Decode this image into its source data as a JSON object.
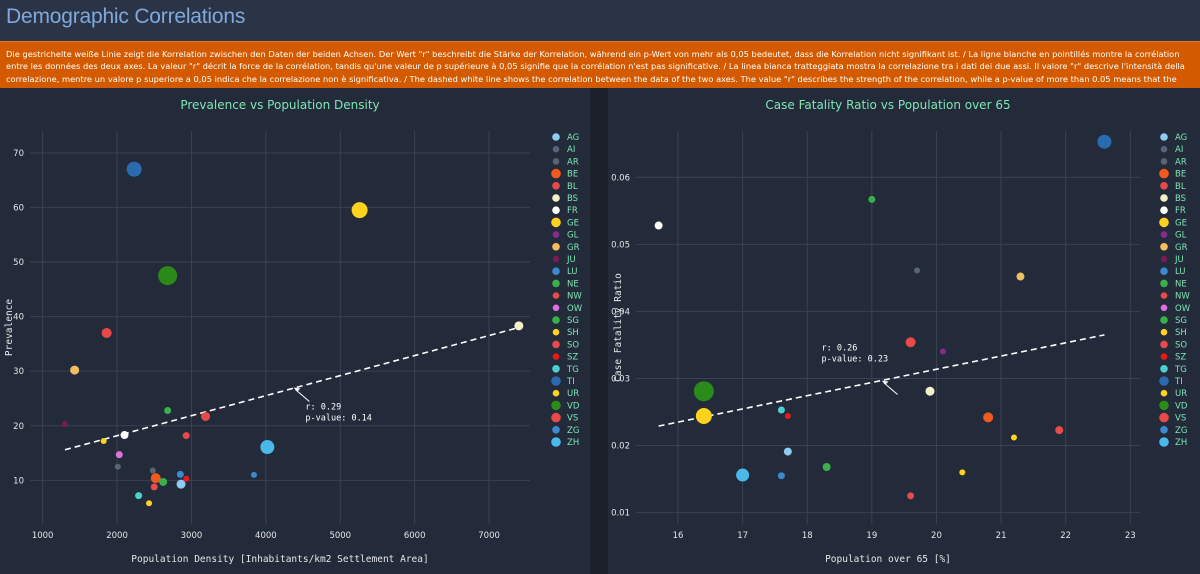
{
  "page": {
    "title": "Demographic Correlations",
    "banner": "Die gestrichelte weiße Linie zeigt die Korrelation zwischen den Daten der beiden Achsen. Der Wert \"r\" beschreibt die Stärke der Korrelation, während ein p-Wert von mehr als 0,05 bedeutet, dass die Korrelation nicht signifikant ist. / La ligne blanche en pointillés montre la corrélation entre les données des deux axes. La valeur \"r\" décrit la force de la corrélation, tandis qu'une valeur de p supérieure à 0,05 signifie que la corrélation n'est pas significative. / La linea bianca tratteggiata mostra la correlazione tra i dati dei due assi. Il valore \"r\" descrive l'intensità della correlazione, mentre un valore p superiore a 0,05 indica che la correlazione non è significativa. / The dashed white line shows the correlation between the data of the two axes. The value \"r\" describes the strength of the correlation, while a p-value of more than 0.05 means that the correlation is not significant."
  },
  "legend": [
    {
      "code": "AG",
      "color": "#8ecbf0"
    },
    {
      "code": "AI",
      "color": "#5a6478"
    },
    {
      "code": "AR",
      "color": "#5a6478"
    },
    {
      "code": "BE",
      "color": "#f05a1e"
    },
    {
      "code": "BL",
      "color": "#e84a4a"
    },
    {
      "code": "BS",
      "color": "#f5f0c8"
    },
    {
      "code": "FR",
      "color": "#ffffff"
    },
    {
      "code": "GE",
      "color": "#ffd21e"
    },
    {
      "code": "GL",
      "color": "#8a2a8a"
    },
    {
      "code": "GR",
      "color": "#f0c060"
    },
    {
      "code": "JU",
      "color": "#7a1a5a"
    },
    {
      "code": "LU",
      "color": "#3a8ad0"
    },
    {
      "code": "NE",
      "color": "#3ab04a"
    },
    {
      "code": "NW",
      "color": "#e84a4a"
    },
    {
      "code": "OW",
      "color": "#e070e0"
    },
    {
      "code": "SG",
      "color": "#3ab04a"
    },
    {
      "code": "SH",
      "color": "#ffd21e"
    },
    {
      "code": "SO",
      "color": "#e84a4a"
    },
    {
      "code": "SZ",
      "color": "#e81a1a"
    },
    {
      "code": "TG",
      "color": "#4ad0d0"
    },
    {
      "code": "TI",
      "color": "#2a6ab0"
    },
    {
      "code": "UR",
      "color": "#ffd21e"
    },
    {
      "code": "VD",
      "color": "#2a8a1a"
    },
    {
      "code": "VS",
      "color": "#e84a4a"
    },
    {
      "code": "ZG",
      "color": "#3a8ad0"
    },
    {
      "code": "ZH",
      "color": "#4ab8e8"
    }
  ],
  "chart_data": [
    {
      "type": "scatter",
      "title": "Prevalence vs Population Density",
      "xlabel": "Population Density [Inhabitants/km2 Settlement Area]",
      "ylabel": "Prevalence",
      "xlim": [
        830,
        7550
      ],
      "ylim": [
        2,
        74
      ],
      "xticks": [
        1000,
        2000,
        3000,
        4000,
        5000,
        6000,
        7000
      ],
      "yticks": [
        10,
        20,
        30,
        40,
        50,
        60,
        70
      ],
      "trend": {
        "x": [
          1300,
          7400
        ],
        "y": [
          15.6,
          38
        ]
      },
      "annotation": {
        "r_label": "r: 0.29",
        "p_label": "p-value: 0.14",
        "x": 4370,
        "y": 27
      },
      "points": [
        {
          "code": "TI",
          "x": 2230,
          "y": 67,
          "size": 7.5
        },
        {
          "code": "GE",
          "x": 5260,
          "y": 59.5,
          "size": 8
        },
        {
          "code": "VD",
          "x": 2680,
          "y": 47.5,
          "size": 9.5
        },
        {
          "code": "BS",
          "x": 7400,
          "y": 38.3,
          "size": 4.5
        },
        {
          "code": "VS",
          "x": 1860,
          "y": 37,
          "size": 5
        },
        {
          "code": "GR",
          "x": 1430,
          "y": 30.2,
          "size": 4.5
        },
        {
          "code": "NE",
          "x": 2680,
          "y": 22.8,
          "size": 3.5
        },
        {
          "code": "BL",
          "x": 3190,
          "y": 21.7,
          "size": 4.5
        },
        {
          "code": "JU",
          "x": 1300,
          "y": 20.3,
          "size": 3
        },
        {
          "code": "FR",
          "x": 2100,
          "y": 18.3,
          "size": 4
        },
        {
          "code": "SO",
          "x": 2930,
          "y": 18.2,
          "size": 3.5
        },
        {
          "code": "UR",
          "x": 1820,
          "y": 17.2,
          "size": 3
        },
        {
          "code": "ZH",
          "x": 4020,
          "y": 16.1,
          "size": 7
        },
        {
          "code": "OW",
          "x": 2030,
          "y": 14.7,
          "size": 3.5
        },
        {
          "code": "AR",
          "x": 2010,
          "y": 12.5,
          "size": 3
        },
        {
          "code": "AI",
          "x": 2480,
          "y": 11.8,
          "size": 3
        },
        {
          "code": "LU",
          "x": 2850,
          "y": 11.1,
          "size": 3.5
        },
        {
          "code": "ZG",
          "x": 3840,
          "y": 11,
          "size": 3
        },
        {
          "code": "BE",
          "x": 2520,
          "y": 10.4,
          "size": 5
        },
        {
          "code": "SZ",
          "x": 2930,
          "y": 10.3,
          "size": 3
        },
        {
          "code": "SG",
          "x": 2620,
          "y": 9.7,
          "size": 4
        },
        {
          "code": "AG",
          "x": 2860,
          "y": 9.3,
          "size": 4.5
        },
        {
          "code": "NW",
          "x": 2500,
          "y": 8.8,
          "size": 3.5
        },
        {
          "code": "TG",
          "x": 2290,
          "y": 7.2,
          "size": 3.5
        },
        {
          "code": "SH",
          "x": 2430,
          "y": 5.8,
          "size": 3
        }
      ]
    },
    {
      "type": "scatter",
      "title": "Case Fatality Ratio vs Population over 65",
      "xlabel": "Population over 65 [%]",
      "ylabel": "Case Fatality Ratio",
      "xlim": [
        15.35,
        23.15
      ],
      "ylim": [
        0.0083,
        0.0669
      ],
      "xticks": [
        16,
        17,
        18,
        19,
        20,
        21,
        22,
        23
      ],
      "yticks": [
        0.01,
        0.02,
        0.03,
        0.04,
        0.05,
        0.06
      ],
      "trend": {
        "x": [
          15.7,
          22.6
        ],
        "y": [
          0.0229,
          0.0365
        ]
      },
      "annotation": {
        "r_label": "r: 0.26",
        "p_label": "p-value: 0.23",
        "x": 19.15,
        "y": 0.0297
      },
      "points": [
        {
          "code": "TI",
          "x": 22.6,
          "y": 0.0653,
          "size": 7
        },
        {
          "code": "NE",
          "x": 19.0,
          "y": 0.0567,
          "size": 3.5
        },
        {
          "code": "FR",
          "x": 15.7,
          "y": 0.0528,
          "size": 4
        },
        {
          "code": "AI",
          "x": 19.7,
          "y": 0.0461,
          "size": 3
        },
        {
          "code": "GR",
          "x": 21.3,
          "y": 0.0452,
          "size": 4
        },
        {
          "code": "BL",
          "x": 19.6,
          "y": 0.0354,
          "size": 5
        },
        {
          "code": "GL",
          "x": 20.1,
          "y": 0.034,
          "size": 3
        },
        {
          "code": "BS",
          "x": 19.9,
          "y": 0.0281,
          "size": 4.5
        },
        {
          "code": "VD",
          "x": 16.4,
          "y": 0.0281,
          "size": 10
        },
        {
          "code": "TG",
          "x": 17.6,
          "y": 0.0253,
          "size": 3.5
        },
        {
          "code": "SZ",
          "x": 17.7,
          "y": 0.0244,
          "size": 3
        },
        {
          "code": "GE",
          "x": 16.4,
          "y": 0.0244,
          "size": 8
        },
        {
          "code": "BE",
          "x": 20.8,
          "y": 0.0242,
          "size": 5
        },
        {
          "code": "VS",
          "x": 21.9,
          "y": 0.0223,
          "size": 4
        },
        {
          "code": "UR",
          "x": 21.2,
          "y": 0.0212,
          "size": 3
        },
        {
          "code": "AG",
          "x": 17.7,
          "y": 0.0191,
          "size": 4
        },
        {
          "code": "SG",
          "x": 18.3,
          "y": 0.0168,
          "size": 4
        },
        {
          "code": "SH",
          "x": 20.4,
          "y": 0.016,
          "size": 3
        },
        {
          "code": "ZH",
          "x": 17.0,
          "y": 0.0156,
          "size": 6.5
        },
        {
          "code": "LU",
          "x": 17.6,
          "y": 0.0155,
          "size": 3.5
        },
        {
          "code": "SO",
          "x": 19.6,
          "y": 0.0125,
          "size": 3.5
        }
      ]
    }
  ]
}
